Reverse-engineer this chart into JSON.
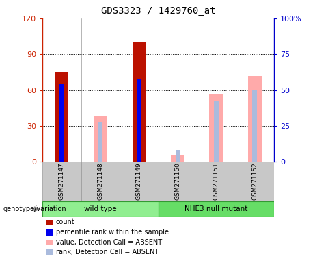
{
  "title": "GDS3323 / 1429760_at",
  "samples": [
    "GSM271147",
    "GSM271148",
    "GSM271149",
    "GSM271150",
    "GSM271151",
    "GSM271152"
  ],
  "groups": [
    {
      "name": "wild type",
      "color": "#90EE90",
      "indices": [
        0,
        1,
        2
      ]
    },
    {
      "name": "NHE3 null mutant",
      "color": "#66DD66",
      "indices": [
        3,
        4,
        5
      ]
    }
  ],
  "count_values": [
    75,
    null,
    100,
    null,
    null,
    null
  ],
  "rank_values": [
    54,
    null,
    58,
    null,
    null,
    null
  ],
  "absent_value_values": [
    null,
    38,
    null,
    5,
    57,
    72
  ],
  "absent_rank_values": [
    null,
    28,
    null,
    8,
    42,
    50
  ],
  "ylim_left": [
    0,
    120
  ],
  "ylim_right": [
    0,
    100
  ],
  "yticks_left": [
    0,
    30,
    60,
    90,
    120
  ],
  "yticks_right": [
    0,
    25,
    50,
    75,
    100
  ],
  "ytick_labels_left": [
    "0",
    "30",
    "60",
    "90",
    "120"
  ],
  "ytick_labels_right": [
    "0",
    "25",
    "50",
    "75",
    "100%"
  ],
  "left_axis_color": "#CC2200",
  "right_axis_color": "#0000CC",
  "count_color": "#BB1100",
  "rank_color": "#0000EE",
  "absent_value_color": "#FFAAAA",
  "absent_rank_color": "#AABBDD",
  "legend_items": [
    {
      "label": "count",
      "color": "#BB1100"
    },
    {
      "label": "percentile rank within the sample",
      "color": "#0000EE"
    },
    {
      "label": "value, Detection Call = ABSENT",
      "color": "#FFAAAA"
    },
    {
      "label": "rank, Detection Call = ABSENT",
      "color": "#AABBDD"
    }
  ],
  "genotype_label": "genotype/variation",
  "tick_label_area_color": "#C8C8C8",
  "grid_dotted_color": "#000000"
}
